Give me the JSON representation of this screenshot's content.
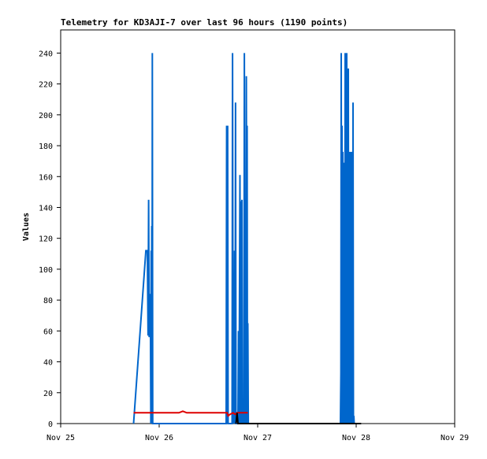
{
  "chart_data": {
    "type": "line",
    "title": "Telemetry for KD3AJI-7 over last 96 hours (1190 points)",
    "xlabel": "",
    "ylabel": "Values",
    "x_ticks": [
      "Nov 25",
      "Nov 26",
      "Nov 27",
      "Nov 28",
      "Nov 29"
    ],
    "y_ticks": [
      0,
      20,
      40,
      60,
      80,
      100,
      120,
      140,
      160,
      180,
      200,
      220,
      240
    ],
    "xlim": [
      0,
      4
    ],
    "ylim": [
      0,
      255
    ],
    "grid": false,
    "legend": "none",
    "series": [
      {
        "color": "#0066cc",
        "points": [
          [
            0.74,
            0
          ],
          [
            0.865,
            112
          ],
          [
            0.88,
            112
          ],
          [
            0.887,
            57
          ],
          [
            0.893,
            145
          ],
          [
            0.898,
            56
          ],
          [
            0.902,
            80
          ],
          [
            0.906,
            60
          ],
          [
            0.91,
            84
          ],
          [
            0.915,
            0
          ],
          [
            0.918,
            112
          ],
          [
            0.922,
            0
          ],
          [
            0.925,
            128
          ],
          [
            0.928,
            0
          ],
          [
            0.93,
            240
          ],
          [
            0.934,
            0
          ],
          [
            1.68,
            0
          ],
          [
            1.685,
            193
          ],
          [
            1.69,
            0
          ],
          [
            1.695,
            193
          ],
          [
            1.7,
            0
          ],
          [
            1.74,
            0
          ],
          [
            1.745,
            240
          ],
          [
            1.75,
            0
          ],
          [
            1.755,
            33
          ],
          [
            1.76,
            0
          ],
          [
            1.765,
            112
          ],
          [
            1.77,
            0
          ],
          [
            1.775,
            208
          ],
          [
            1.78,
            0
          ],
          [
            1.8,
            0
          ],
          [
            1.805,
            60
          ],
          [
            1.81,
            0
          ],
          [
            1.82,
            161
          ],
          [
            1.825,
            0
          ],
          [
            1.83,
            144
          ],
          [
            1.835,
            0
          ],
          [
            1.84,
            145
          ],
          [
            1.845,
            0
          ],
          [
            1.86,
            0
          ],
          [
            1.865,
            240
          ],
          [
            1.87,
            0
          ],
          [
            1.875,
            145
          ],
          [
            1.88,
            0
          ],
          [
            1.885,
            225
          ],
          [
            1.89,
            0
          ],
          [
            1.893,
            193
          ],
          [
            1.896,
            0
          ],
          [
            1.9,
            65
          ],
          [
            1.905,
            0
          ],
          [
            2.84,
            0
          ],
          [
            2.845,
            33
          ],
          [
            2.848,
            240
          ],
          [
            2.852,
            0
          ],
          [
            2.856,
            193
          ],
          [
            2.86,
            0
          ],
          [
            2.864,
            176
          ],
          [
            2.868,
            0
          ],
          [
            2.872,
            169
          ],
          [
            2.876,
            0
          ],
          [
            2.88,
            145
          ],
          [
            2.884,
            0
          ],
          [
            2.888,
            240
          ],
          [
            2.892,
            0
          ],
          [
            2.896,
            145
          ],
          [
            2.9,
            0
          ],
          [
            2.904,
            240
          ],
          [
            2.908,
            0
          ],
          [
            2.912,
            161
          ],
          [
            2.916,
            0
          ],
          [
            2.92,
            230
          ],
          [
            2.924,
            0
          ],
          [
            2.928,
            145
          ],
          [
            2.932,
            0
          ],
          [
            2.936,
            176
          ],
          [
            2.94,
            0
          ],
          [
            2.944,
            160
          ],
          [
            2.948,
            0
          ],
          [
            2.952,
            176
          ],
          [
            2.956,
            0
          ],
          [
            2.96,
            145
          ],
          [
            2.964,
            0
          ],
          [
            2.968,
            208
          ],
          [
            2.972,
            0
          ],
          [
            2.976,
            5
          ],
          [
            2.98,
            0
          ]
        ]
      },
      {
        "color": "#dd0000",
        "points": [
          [
            0.74,
            7
          ],
          [
            1.0,
            7
          ],
          [
            1.2,
            7
          ],
          [
            1.24,
            8
          ],
          [
            1.28,
            7
          ],
          [
            1.5,
            7
          ],
          [
            1.69,
            7
          ],
          [
            1.7,
            5
          ],
          [
            1.72,
            6
          ],
          [
            1.75,
            7
          ],
          [
            1.77,
            6
          ],
          [
            1.79,
            7
          ],
          [
            1.82,
            7
          ],
          [
            1.9,
            7
          ]
        ]
      },
      {
        "color": "#000000",
        "points": [
          [
            1.78,
            0
          ],
          [
            1.79,
            7
          ],
          [
            1.8,
            0
          ],
          [
            1.83,
            0
          ],
          [
            2.0,
            0
          ],
          [
            2.6,
            0
          ],
          [
            2.84,
            0
          ],
          [
            3.05,
            0
          ]
        ]
      }
    ]
  }
}
